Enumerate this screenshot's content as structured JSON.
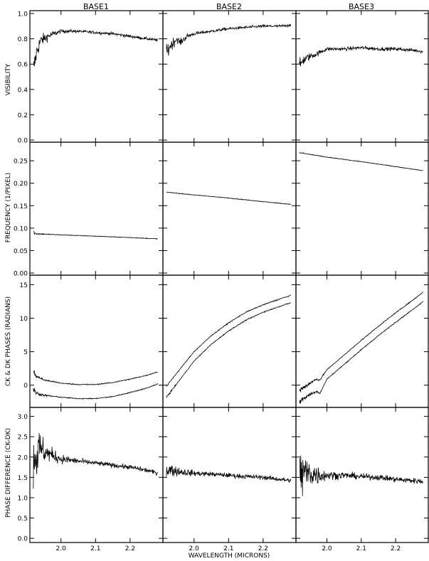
{
  "chart_data": {
    "type": "line",
    "column_titles": [
      "BASE1",
      "BASE2",
      "BASE3"
    ],
    "xlabel": "WAVELENGTH (MICRONS)",
    "xlim": [
      1.91,
      2.295
    ],
    "x_ticks": [
      2.0,
      2.1,
      2.2
    ],
    "x_tick_labels": [
      "2.0",
      "2.1",
      "2.2"
    ],
    "rows": [
      {
        "ylabel": "VISIBILITY",
        "ylim": [
          0,
          1.0
        ],
        "y_ticks": [
          0.0,
          0.2,
          0.4,
          0.6,
          0.8,
          1.0
        ],
        "y_tick_labels": [
          "0.0",
          "0.2",
          "0.4",
          "0.6",
          "0.8",
          "1.0"
        ],
        "panels": [
          {
            "series": [
              {
                "x": [
                  1.92,
                  1.93,
                  1.94,
                  1.95,
                  1.97,
                  2.0,
                  2.05,
                  2.1,
                  2.15,
                  2.2,
                  2.25,
                  2.28
                ],
                "y": [
                  0.55,
                  0.7,
                  0.78,
                  0.8,
                  0.83,
                  0.86,
                  0.86,
                  0.85,
                  0.84,
                  0.82,
                  0.8,
                  0.79
                ],
                "noise": [
                  0.06,
                  0.05,
                  0.04,
                  0.03,
                  0.02,
                  0.01,
                  0.008,
                  0.008,
                  0.008,
                  0.008,
                  0.008,
                  0.008
                ]
              }
            ]
          },
          {
            "series": [
              {
                "x": [
                  1.92,
                  1.93,
                  1.95,
                  1.96,
                  1.98,
                  2.0,
                  2.05,
                  2.1,
                  2.15,
                  2.2,
                  2.25,
                  2.28
                ],
                "y": [
                  0.68,
                  0.74,
                  0.8,
                  0.77,
                  0.82,
                  0.84,
                  0.86,
                  0.88,
                  0.89,
                  0.9,
                  0.9,
                  0.91
                ],
                "noise": [
                  0.05,
                  0.04,
                  0.02,
                  0.02,
                  0.015,
                  0.01,
                  0.008,
                  0.008,
                  0.008,
                  0.008,
                  0.008,
                  0.008
                ]
              }
            ]
          },
          {
            "series": [
              {
                "x": [
                  1.92,
                  1.93,
                  1.95,
                  1.97,
                  2.0,
                  2.05,
                  2.1,
                  2.15,
                  2.2,
                  2.25,
                  2.28
                ],
                "y": [
                  0.58,
                  0.63,
                  0.66,
                  0.68,
                  0.72,
                  0.72,
                  0.73,
                  0.72,
                  0.72,
                  0.71,
                  0.7
                ],
                "noise": [
                  0.04,
                  0.03,
                  0.02,
                  0.015,
                  0.01,
                  0.01,
                  0.01,
                  0.01,
                  0.01,
                  0.01,
                  0.01
                ]
              }
            ]
          }
        ]
      },
      {
        "ylabel": "FREQUENCY (1/PIXEL)",
        "ylim": [
          0,
          0.285
        ],
        "y_ticks": [
          0.0,
          0.05,
          0.1,
          0.15,
          0.2,
          0.25
        ],
        "y_tick_labels": [
          "0.00",
          "0.05",
          "0.10",
          "0.15",
          "0.20",
          "0.25"
        ],
        "panels": [
          {
            "series": [
              {
                "x": [
                  1.92,
                  1.925,
                  1.94,
                  2.0,
                  2.1,
                  2.2,
                  2.28
                ],
                "y": [
                  0.092,
                  0.088,
                  0.087,
                  0.085,
                  0.082,
                  0.079,
                  0.076
                ],
                "noise": [
                  0.003,
                  0.002,
                  0.001,
                  0.0005,
                  0.0005,
                  0.0005,
                  0.0005
                ]
              }
            ]
          },
          {
            "series": [
              {
                "x": [
                  1.92,
                  2.0,
                  2.1,
                  2.2,
                  2.28
                ],
                "y": [
                  0.18,
                  0.174,
                  0.167,
                  0.159,
                  0.153
                ],
                "noise": [
                  0.0005,
                  0.0005,
                  0.0005,
                  0.0005,
                  0.0005
                ]
              }
            ]
          },
          {
            "series": [
              {
                "x": [
                  1.92,
                  2.0,
                  2.1,
                  2.2,
                  2.28
                ],
                "y": [
                  0.268,
                  0.258,
                  0.248,
                  0.237,
                  0.228
                ],
                "noise": [
                  0.001,
                  0.0005,
                  0.0005,
                  0.0005,
                  0.0005
                ]
              }
            ]
          }
        ]
      },
      {
        "ylabel": "CK & DK PHASES (RADIANS)",
        "ylim": [
          -3,
          16
        ],
        "y_ticks": [
          0,
          5,
          10,
          15
        ],
        "y_tick_labels": [
          "0",
          "5",
          "10",
          "15"
        ],
        "panels": [
          {
            "series": [
              {
                "x": [
                  1.92,
                  1.93,
                  1.95,
                  2.0,
                  2.05,
                  2.1,
                  2.15,
                  2.2,
                  2.25,
                  2.28
                ],
                "y": [
                  2.0,
                  1.3,
                  0.8,
                  0.3,
                  0.1,
                  0.1,
                  0.4,
                  0.9,
                  1.5,
                  2.0
                ],
                "noise": [
                  0.4,
                  0.25,
                  0.1,
                  0.05,
                  0.05,
                  0.05,
                  0.05,
                  0.05,
                  0.05,
                  0.05
                ]
              },
              {
                "x": [
                  1.92,
                  1.93,
                  1.95,
                  2.0,
                  2.05,
                  2.1,
                  2.15,
                  2.2,
                  2.25,
                  2.28
                ],
                "y": [
                  -0.8,
                  -1.2,
                  -1.5,
                  -1.8,
                  -2.0,
                  -2.0,
                  -1.7,
                  -1.1,
                  -0.4,
                  0.2
                ],
                "noise": [
                  0.4,
                  0.25,
                  0.1,
                  0.05,
                  0.05,
                  0.05,
                  0.05,
                  0.05,
                  0.05,
                  0.05
                ]
              }
            ]
          },
          {
            "series": [
              {
                "x": [
                  1.92,
                  1.95,
                  2.0,
                  2.05,
                  2.1,
                  2.15,
                  2.2,
                  2.25,
                  2.28
                ],
                "y": [
                  -0.2,
                  1.8,
                  5.0,
                  7.4,
                  9.3,
                  10.9,
                  12.0,
                  12.9,
                  13.4
                ],
                "noise": [
                  0.1,
                  0.05,
                  0.05,
                  0.05,
                  0.05,
                  0.05,
                  0.05,
                  0.05,
                  0.05
                ]
              },
              {
                "x": [
                  1.92,
                  1.95,
                  2.0,
                  2.05,
                  2.1,
                  2.15,
                  2.2,
                  2.25,
                  2.28
                ],
                "y": [
                  -1.8,
                  0.2,
                  3.6,
                  6.1,
                  8.1,
                  9.7,
                  10.9,
                  11.8,
                  12.3
                ],
                "noise": [
                  0.15,
                  0.05,
                  0.05,
                  0.05,
                  0.05,
                  0.05,
                  0.05,
                  0.05,
                  0.05
                ]
              }
            ]
          },
          {
            "series": [
              {
                "x": [
                  1.92,
                  1.95,
                  1.97,
                  1.98,
                  2.0,
                  2.05,
                  2.1,
                  2.15,
                  2.2,
                  2.25,
                  2.28
                ],
                "y": [
                  -0.8,
                  0.3,
                  0.9,
                  0.8,
                  2.3,
                  4.5,
                  6.7,
                  8.8,
                  10.8,
                  12.7,
                  13.9
                ],
                "noise": [
                  0.35,
                  0.2,
                  0.15,
                  0.1,
                  0.05,
                  0.05,
                  0.05,
                  0.05,
                  0.05,
                  0.05,
                  0.05
                ]
              },
              {
                "x": [
                  1.92,
                  1.95,
                  1.97,
                  1.98,
                  2.0,
                  2.05,
                  2.1,
                  2.15,
                  2.2,
                  2.25,
                  2.28
                ],
                "y": [
                  -2.4,
                  -1.4,
                  -0.9,
                  -1.2,
                  0.9,
                  3.1,
                  5.3,
                  7.4,
                  9.4,
                  11.3,
                  12.5
                ],
                "noise": [
                  0.35,
                  0.2,
                  0.15,
                  0.1,
                  0.05,
                  0.05,
                  0.05,
                  0.05,
                  0.05,
                  0.05,
                  0.05
                ]
              }
            ]
          }
        ]
      },
      {
        "ylabel": "PHASE DIFFERENCE (CK-DK)",
        "ylim": [
          -0.05,
          3.15
        ],
        "y_ticks": [
          0.0,
          0.5,
          1.0,
          1.5,
          2.0,
          2.5,
          3.0
        ],
        "y_tick_labels": [
          "0.0",
          "0.5",
          "1.0",
          "1.5",
          "2.0",
          "2.5",
          "3.0"
        ],
        "panels": [
          {
            "series": [
              {
                "x": [
                  1.92,
                  1.94,
                  1.96,
                  2.0,
                  2.05,
                  2.1,
                  2.15,
                  2.2,
                  2.25,
                  2.28
                ],
                "y": [
                  2.0,
                  2.2,
                  2.1,
                  1.95,
                  1.9,
                  1.85,
                  1.8,
                  1.75,
                  1.67,
                  1.6
                ],
                "noise": [
                  0.7,
                  0.3,
                  0.15,
                  0.08,
                  0.05,
                  0.04,
                  0.04,
                  0.04,
                  0.04,
                  0.04
                ]
              }
            ]
          },
          {
            "series": [
              {
                "x": [
                  1.92,
                  1.95,
                  2.0,
                  2.05,
                  2.1,
                  2.15,
                  2.2,
                  2.25,
                  2.28
                ],
                "y": [
                  1.7,
                  1.65,
                  1.6,
                  1.58,
                  1.55,
                  1.52,
                  1.5,
                  1.45,
                  1.42
                ],
                "noise": [
                  0.15,
                  0.08,
                  0.05,
                  0.04,
                  0.04,
                  0.04,
                  0.04,
                  0.04,
                  0.04
                ]
              }
            ]
          },
          {
            "series": [
              {
                "x": [
                  1.92,
                  1.95,
                  1.98,
                  2.0,
                  2.05,
                  2.1,
                  2.15,
                  2.2,
                  2.25,
                  2.28
                ],
                "y": [
                  1.6,
                  1.6,
                  1.55,
                  1.55,
                  1.55,
                  1.52,
                  1.5,
                  1.45,
                  1.42,
                  1.4
                ],
                "noise": [
                  0.5,
                  0.25,
                  0.15,
                  0.08,
                  0.06,
                  0.05,
                  0.05,
                  0.05,
                  0.05,
                  0.05
                ]
              }
            ]
          }
        ]
      }
    ]
  }
}
